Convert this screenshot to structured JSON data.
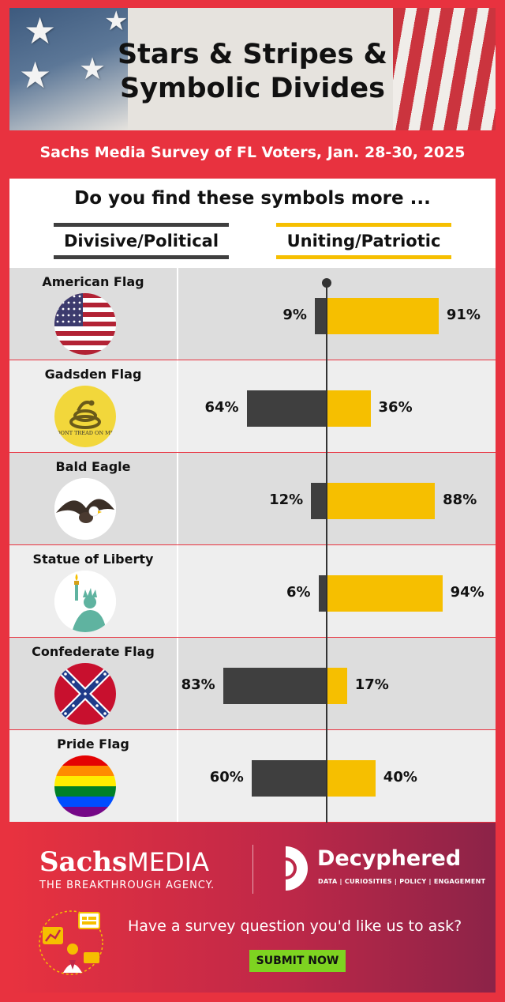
{
  "header": {
    "title_line1": "Stars & Stripes &",
    "title_line2": "Symbolic Divides",
    "survey": "Sachs Media Survey of FL Voters, Jan. 28-30, 2025"
  },
  "question": "Do you find these symbols more ...",
  "legend": {
    "divisive": "Divisive/Political",
    "uniting": "Uniting/Patriotic"
  },
  "colors": {
    "divisive": "#3f3f3f",
    "uniting": "#f6bf00",
    "frame": "#e8323f"
  },
  "chart_data": {
    "type": "bar",
    "orientation": "horizontal-diverging",
    "categories": [
      "American Flag",
      "Gadsden Flag",
      "Bald Eagle",
      "Statue of Liberty",
      "Confederate Flag",
      "Pride Flag"
    ],
    "series": [
      {
        "name": "Divisive/Political",
        "values": [
          9,
          64,
          12,
          6,
          83,
          60
        ]
      },
      {
        "name": "Uniting/Patriotic",
        "values": [
          91,
          36,
          88,
          94,
          17,
          40
        ]
      }
    ],
    "labels_divisive": [
      "9%",
      "64%",
      "12%",
      "6%",
      "83%",
      "60%"
    ],
    "labels_uniting": [
      "91%",
      "36%",
      "88%",
      "94%",
      "17%",
      "40%"
    ],
    "icons": [
      "american-flag-icon",
      "gadsden-flag-icon",
      "bald-eagle-icon",
      "statue-of-liberty-icon",
      "confederate-flag-icon",
      "pride-flag-icon"
    ],
    "gadsden_text": "DONT TREAD ON ME"
  },
  "footer": {
    "sachs_bold": "Sachs",
    "sachs_thin": "MEDIA",
    "sachs_tagline": "THE BREAKTHROUGH AGENCY.",
    "decyphered_name": "Decyphered",
    "decyphered_tagline": "DATA | CURIOSITIES | POLICY | ENGAGEMENT",
    "cta": "Have a survey question you'd like us to ask?",
    "button": "SUBMIT NOW"
  }
}
